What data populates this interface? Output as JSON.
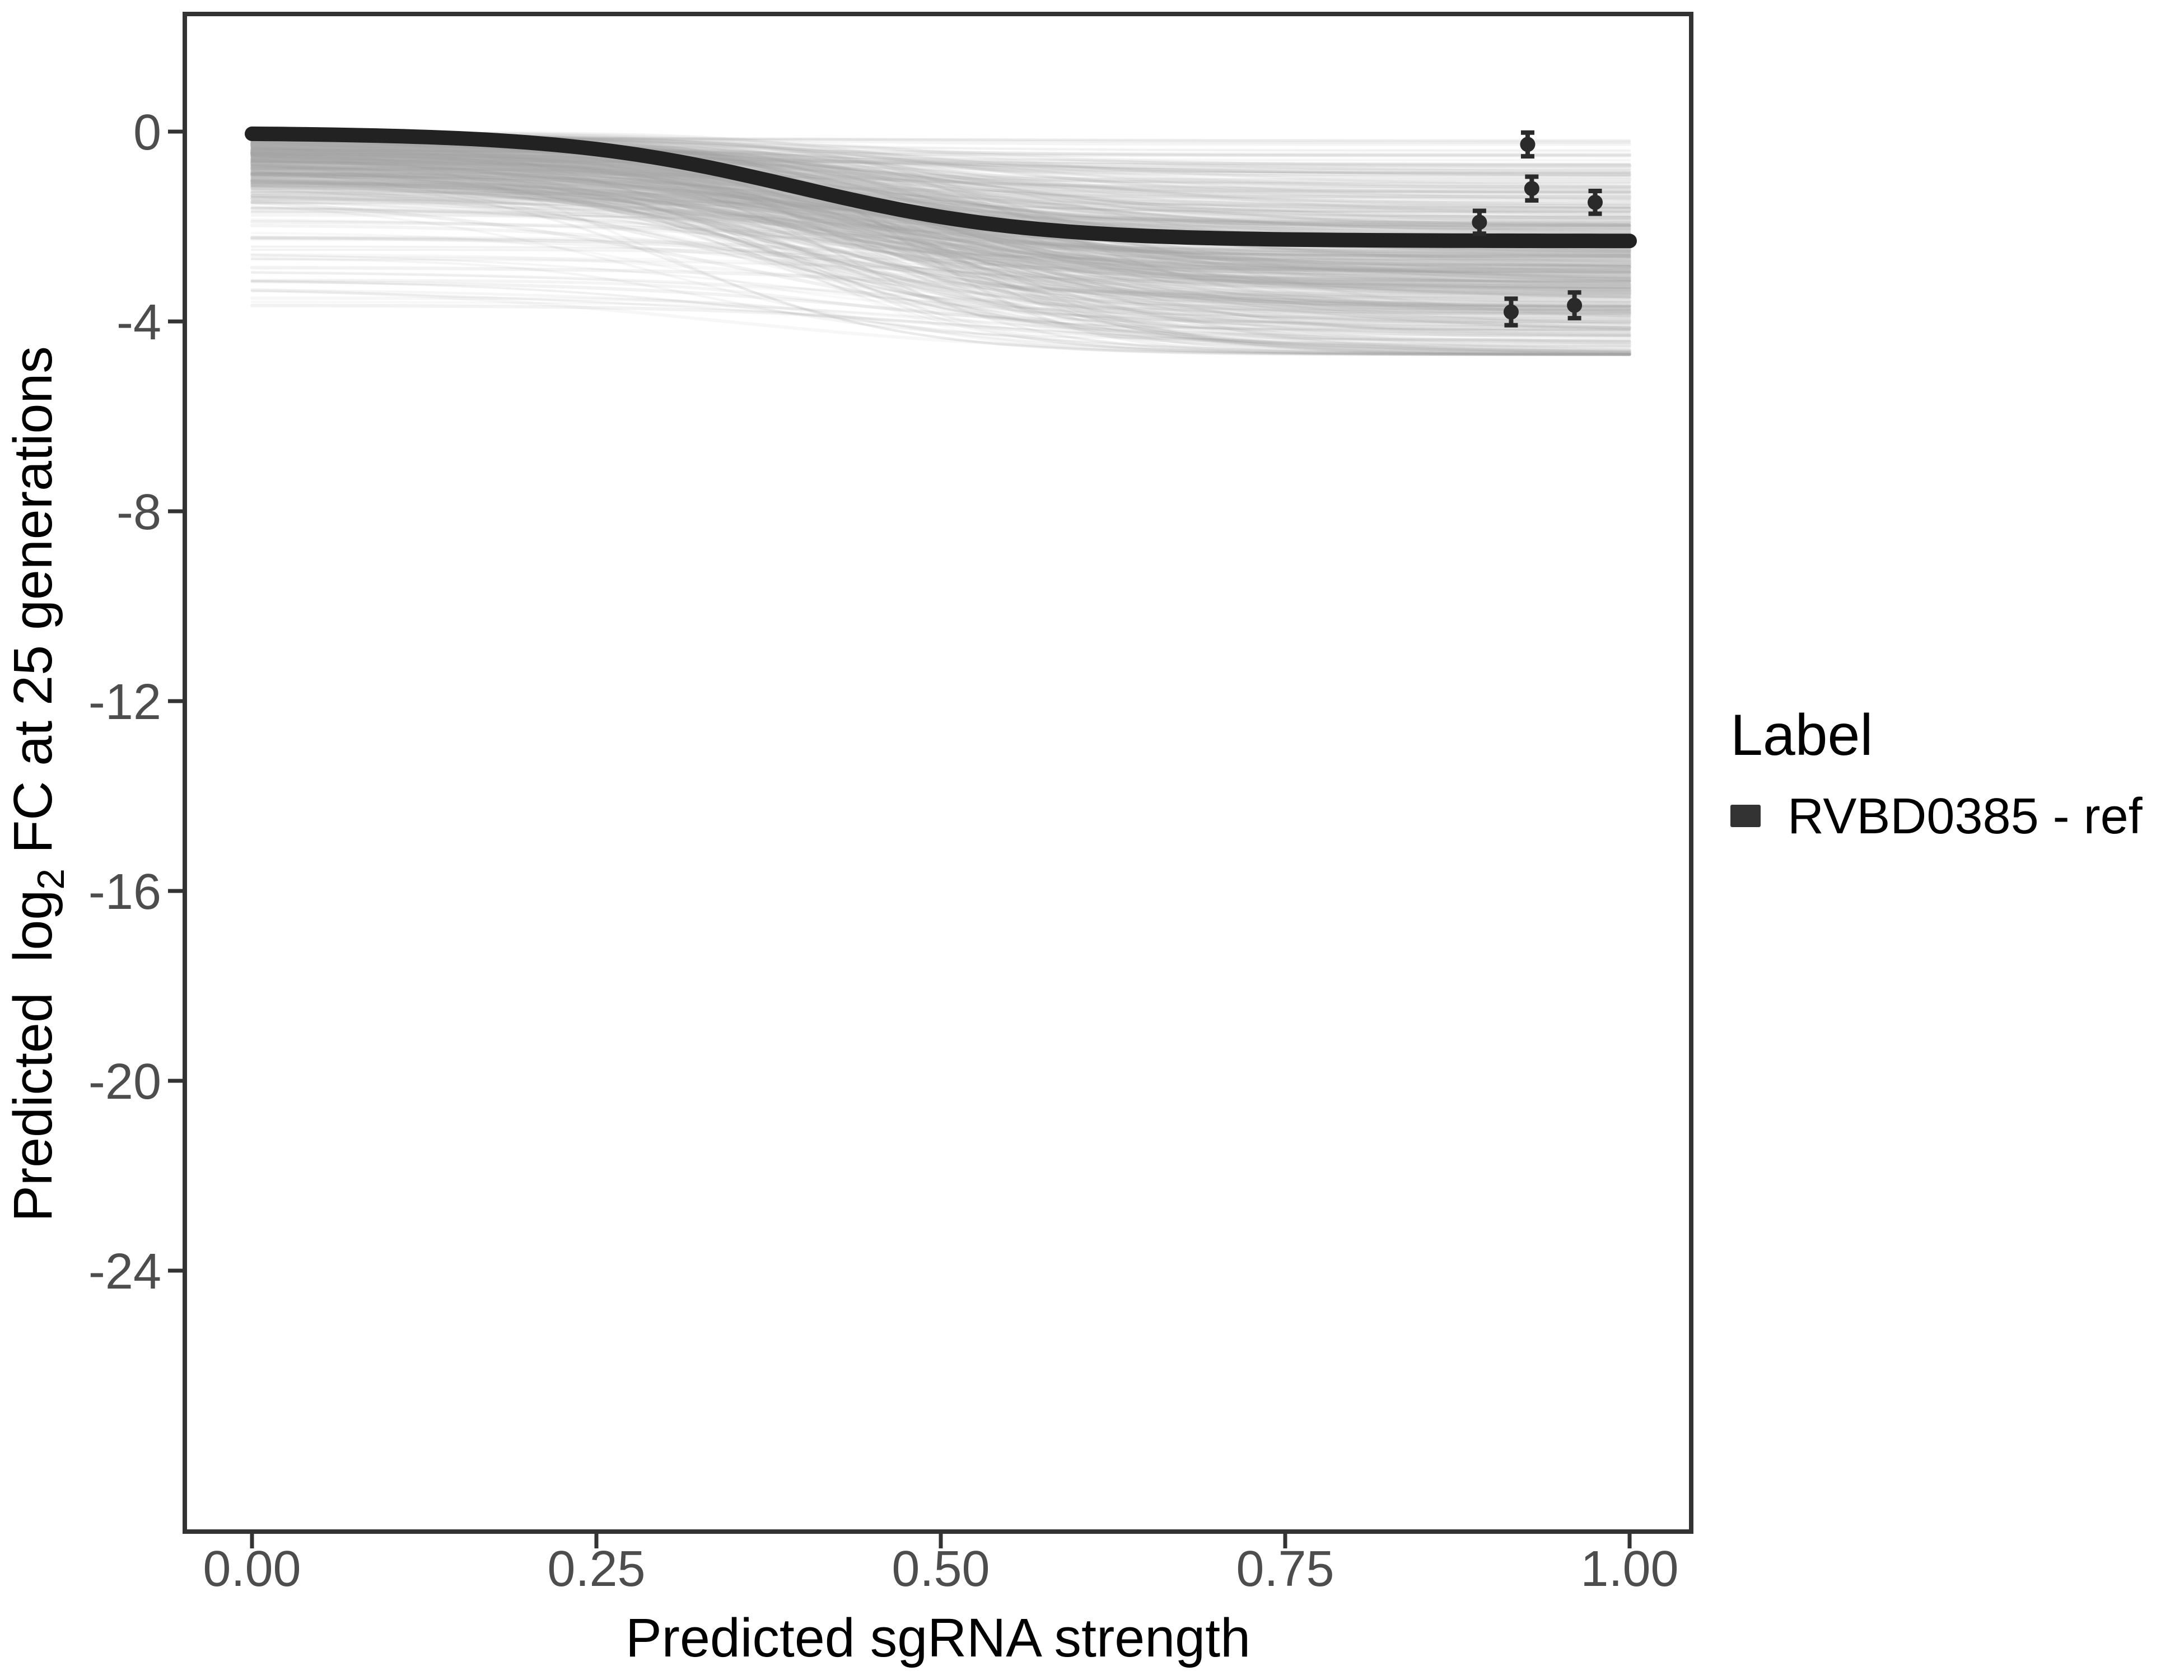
{
  "figure": {
    "background": "#ffffff",
    "panel_border_color": "#333333",
    "panel_border_width": 8,
    "tick_color": "#333333",
    "axis_text_color": "#4d4d4d",
    "axis_title_color": "#000000"
  },
  "chart_data": {
    "type": "line",
    "title": "",
    "xlabel": "Predicted sgRNA strength",
    "ylabel": "Predicted log2 FC at 25 generations",
    "ylabel_parts": {
      "prefix": "Predicted  log",
      "sub": "2",
      "suffix": " FC at 25 generations"
    },
    "xlim": [
      -0.048,
      1.047
    ],
    "ylim": [
      -29.5,
      2.5
    ],
    "grid": false,
    "x_ticks": {
      "values": [
        0,
        0.25,
        0.5,
        0.75,
        1.0
      ],
      "labels": [
        "0.00",
        "0.25",
        "0.50",
        "0.75",
        "1.00"
      ]
    },
    "y_ticks": {
      "values": [
        0,
        -4,
        -8,
        -12,
        -16,
        -20,
        -24
      ],
      "labels": [
        "0",
        "-4",
        "-8",
        "-12",
        "-16",
        "-20",
        "-24"
      ]
    },
    "legend": {
      "position": "right",
      "title": "Label",
      "entries": [
        {
          "label": "RVBD0385 - ref",
          "color": "#333333",
          "marker": "thick-line"
        }
      ]
    },
    "reference_curve": {
      "name": "RVBD0385 - ref",
      "color": "#222222",
      "stroke_width": 26,
      "model": "y = baseline - depth / (1 + exp(-slope * (x - midpoint)))",
      "baseline": -0.025,
      "depth": 2.28,
      "midpoint": 0.395,
      "slope": 11.9,
      "samples_x": [
        0,
        0.1,
        0.2,
        0.3,
        0.4,
        0.5,
        0.6,
        0.7,
        0.8,
        0.9,
        1.0
      ],
      "samples_y": [
        -0.05,
        -0.09,
        -0.23,
        -0.58,
        -1.13,
        -1.8,
        -2.12,
        -2.25,
        -2.29,
        -2.3,
        -2.3
      ]
    },
    "posterior_ensemble": {
      "name": "posterior draw curves",
      "count": 520,
      "seed": 1337,
      "start_sd": 0.7,
      "outlier_prob": 0.07,
      "depth_mean": 2.25,
      "depth_sd": 1.05,
      "midpoint_mean": 0.45,
      "midpoint_sd": 0.06,
      "slope_mean": 10.5,
      "slope_sd": 2.8,
      "start_floor": -3.7,
      "y_floor": -4.7,
      "gray_min": 150,
      "gray_range": 40,
      "alpha_min": 0.07,
      "alpha_range": 0.08
    },
    "points": {
      "name": "observed guide measurements",
      "color": "#2a2a2a",
      "data": [
        {
          "x": 0.926,
          "y": -0.27,
          "err": 0.25
        },
        {
          "x": 0.929,
          "y": -1.2,
          "err": 0.25
        },
        {
          "x": 0.975,
          "y": -1.49,
          "err": 0.24
        },
        {
          "x": 0.891,
          "y": -1.91,
          "err": 0.24
        },
        {
          "x": 0.914,
          "y": -3.8,
          "err": 0.28
        },
        {
          "x": 0.96,
          "y": -3.66,
          "err": 0.27
        }
      ]
    }
  }
}
